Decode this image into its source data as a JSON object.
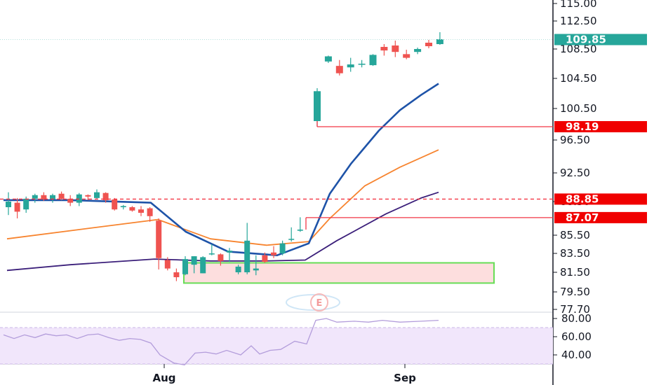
{
  "chart_data": {
    "type": "candlestick",
    "price_axis": {
      "ticks": [
        "115.00",
        "112.50",
        "108.50",
        "104.50",
        "100.50",
        "96.50",
        "92.50",
        "88.50",
        "85.50",
        "83.50",
        "81.50",
        "79.50",
        "77.70"
      ],
      "values": [
        115.0,
        112.5,
        108.5,
        104.5,
        100.5,
        96.5,
        92.5,
        88.5,
        85.5,
        83.5,
        81.5,
        79.5,
        77.7
      ]
    },
    "rsi_axis": {
      "ticks": [
        "80.00",
        "60.00",
        "40.00"
      ],
      "values": [
        80,
        60,
        40
      ],
      "band": [
        30,
        70
      ]
    },
    "x_ticks": [
      {
        "label": "Aug",
        "index": 13
      },
      {
        "label": "Sep",
        "index": 33
      }
    ],
    "candles": [
      {
        "o": 88.0,
        "h": 89.8,
        "l": 87.3,
        "c": 88.5
      },
      {
        "o": 88.4,
        "h": 89.0,
        "l": 87.0,
        "c": 87.6
      },
      {
        "o": 87.8,
        "h": 89.2,
        "l": 87.5,
        "c": 88.9
      },
      {
        "o": 88.9,
        "h": 89.6,
        "l": 88.4,
        "c": 89.4
      },
      {
        "o": 89.4,
        "h": 89.8,
        "l": 88.6,
        "c": 88.8
      },
      {
        "o": 88.8,
        "h": 89.6,
        "l": 88.4,
        "c": 89.4
      },
      {
        "o": 89.6,
        "h": 89.9,
        "l": 88.7,
        "c": 88.9
      },
      {
        "o": 88.9,
        "h": 89.4,
        "l": 88.1,
        "c": 88.4
      },
      {
        "o": 88.4,
        "h": 89.7,
        "l": 88.1,
        "c": 89.5
      },
      {
        "o": 89.4,
        "h": 89.5,
        "l": 88.7,
        "c": 89.2
      },
      {
        "o": 89.0,
        "h": 90.2,
        "l": 88.9,
        "c": 89.8
      },
      {
        "o": 89.7,
        "h": 89.8,
        "l": 88.4,
        "c": 88.7
      },
      {
        "o": 88.8,
        "h": 89.0,
        "l": 87.7,
        "c": 87.8
      },
      {
        "o": 88.0,
        "h": 88.2,
        "l": 87.8,
        "c": 88.1
      },
      {
        "o": 88.0,
        "h": 88.1,
        "l": 87.6,
        "c": 87.7
      },
      {
        "o": 87.8,
        "h": 88.1,
        "l": 87.2,
        "c": 87.5
      },
      {
        "o": 87.9,
        "h": 88.0,
        "l": 86.7,
        "c": 87.2
      },
      {
        "o": 86.8,
        "h": 87.0,
        "l": 81.8,
        "c": 83.0
      },
      {
        "o": 82.8,
        "h": 83.1,
        "l": 81.7,
        "c": 81.9
      },
      {
        "o": 81.5,
        "h": 81.9,
        "l": 80.6,
        "c": 81.0
      },
      {
        "o": 81.3,
        "h": 83.2,
        "l": 81.2,
        "c": 82.9
      },
      {
        "o": 82.3,
        "h": 83.2,
        "l": 81.4,
        "c": 83.2
      },
      {
        "o": 81.4,
        "h": 83.2,
        "l": 81.4,
        "c": 83.1
      },
      {
        "o": 83.4,
        "h": 84.5,
        "l": 83.3,
        "c": 83.5
      },
      {
        "o": 83.4,
        "h": 83.5,
        "l": 82.2,
        "c": 82.7
      },
      {
        "o": 83.6,
        "h": 84.1,
        "l": 82.6,
        "c": 83.8
      },
      {
        "o": 81.5,
        "h": 82.3,
        "l": 81.3,
        "c": 82.1
      },
      {
        "o": 81.5,
        "h": 86.6,
        "l": 81.3,
        "c": 84.9
      },
      {
        "o": 81.7,
        "h": 83.3,
        "l": 81.2,
        "c": 81.9
      },
      {
        "o": 83.3,
        "h": 83.6,
        "l": 82.5,
        "c": 82.6
      },
      {
        "o": 83.6,
        "h": 84.3,
        "l": 83.0,
        "c": 83.3
      },
      {
        "o": 83.5,
        "h": 84.9,
        "l": 83.3,
        "c": 84.6
      },
      {
        "o": 85.0,
        "h": 86.2,
        "l": 84.8,
        "c": 85.1
      },
      {
        "o": 85.9,
        "h": 87.1,
        "l": 85.8,
        "c": 86.0
      }
    ],
    "candles_b": [
      {
        "o": 98.9,
        "h": 103.2,
        "l": 98.19,
        "c": 102.8
      },
      {
        "o": 106.8,
        "h": 107.6,
        "l": 106.6,
        "c": 107.5
      },
      {
        "o": 106.2,
        "h": 107.0,
        "l": 104.9,
        "c": 105.2
      },
      {
        "o": 106.0,
        "h": 107.3,
        "l": 105.4,
        "c": 106.4
      },
      {
        "o": 106.4,
        "h": 107.0,
        "l": 106.0,
        "c": 106.5
      },
      {
        "o": 106.3,
        "h": 107.8,
        "l": 106.2,
        "c": 107.7
      },
      {
        "o": 108.8,
        "h": 109.2,
        "l": 107.6,
        "c": 108.3
      },
      {
        "o": 109.0,
        "h": 109.7,
        "l": 107.4,
        "c": 108.1
      },
      {
        "o": 107.8,
        "h": 108.4,
        "l": 107.1,
        "c": 107.3
      },
      {
        "o": 108.1,
        "h": 108.7,
        "l": 107.8,
        "c": 108.5
      },
      {
        "o": 109.4,
        "h": 109.8,
        "l": 108.6,
        "c": 108.9
      },
      {
        "o": 109.2,
        "h": 110.9,
        "l": 109.1,
        "c": 109.9
      }
    ],
    "ema_blue": [
      [
        5,
        88.7
      ],
      [
        100,
        88.7
      ],
      [
        215,
        88.4
      ],
      [
        265,
        85.8
      ],
      [
        325,
        83.7
      ],
      [
        395,
        83.3
      ],
      [
        440,
        84.6
      ],
      [
        470,
        89.6
      ],
      [
        500,
        93.6
      ],
      [
        540,
        97.7
      ],
      [
        570,
        100.3
      ],
      [
        600,
        102.3
      ],
      [
        625,
        103.8
      ]
    ],
    "ema_orange": [
      [
        10,
        85.1
      ],
      [
        100,
        85.9
      ],
      [
        225,
        86.9
      ],
      [
        300,
        85.1
      ],
      [
        380,
        84.4
      ],
      [
        440,
        84.8
      ],
      [
        470,
        87.0
      ],
      [
        520,
        90.7
      ],
      [
        570,
        93.2
      ],
      [
        625,
        95.3
      ]
    ],
    "sma_purple": [
      [
        10,
        81.7
      ],
      [
        100,
        82.3
      ],
      [
        220,
        82.9
      ],
      [
        300,
        82.7
      ],
      [
        380,
        82.7
      ],
      [
        435,
        82.8
      ],
      [
        480,
        84.9
      ],
      [
        550,
        87.4
      ],
      [
        600,
        89.0
      ],
      [
        625,
        89.8
      ]
    ],
    "rsi": [
      [
        5,
        62
      ],
      [
        20,
        58
      ],
      [
        35,
        62
      ],
      [
        50,
        59
      ],
      [
        65,
        63
      ],
      [
        80,
        61
      ],
      [
        95,
        62
      ],
      [
        110,
        58
      ],
      [
        125,
        62
      ],
      [
        140,
        63
      ],
      [
        155,
        59
      ],
      [
        170,
        56
      ],
      [
        185,
        58
      ],
      [
        200,
        57
      ],
      [
        215,
        53
      ],
      [
        228,
        40
      ],
      [
        248,
        31
      ],
      [
        263,
        29
      ],
      [
        278,
        42
      ],
      [
        293,
        43
      ],
      [
        308,
        41
      ],
      [
        323,
        45
      ],
      [
        343,
        40
      ],
      [
        358,
        50
      ],
      [
        370,
        41
      ],
      [
        385,
        45
      ],
      [
        400,
        46
      ],
      [
        420,
        55
      ],
      [
        437,
        52
      ],
      [
        450,
        78
      ],
      [
        465,
        80
      ],
      [
        480,
        76
      ],
      [
        505,
        77
      ],
      [
        525,
        76
      ],
      [
        545,
        78
      ],
      [
        570,
        76
      ],
      [
        600,
        77
      ],
      [
        625,
        78
      ]
    ],
    "levels": [
      {
        "label": "98.19",
        "value": 98.19,
        "style": "solid",
        "color": "#f23645",
        "from_x": 452
      },
      {
        "label": "88.85",
        "value": 88.85,
        "style": "dashed",
        "color": "#f23645",
        "from_x": 0
      },
      {
        "label": "87.07",
        "value": 87.07,
        "style": "solid",
        "color": "#f23645",
        "from_x": 436
      }
    ],
    "last_price": {
      "label": "109.85",
      "value": 109.85,
      "color": "#26a69a"
    },
    "zone": {
      "y_top": 82.5,
      "y_bottom": 80.4,
      "fill": "#fddede",
      "stroke": "#66dd55"
    },
    "watermark": "E",
    "colors": {
      "up": "#26a69a",
      "down": "#ef5350",
      "ema_blue": "#1e53a8",
      "ema_orange": "#f7842f",
      "sma_purple": "#3b1f7a",
      "rsi_line": "#b39ddb",
      "rsi_band": "#f1e6fb",
      "axis_text": "#131722"
    }
  }
}
